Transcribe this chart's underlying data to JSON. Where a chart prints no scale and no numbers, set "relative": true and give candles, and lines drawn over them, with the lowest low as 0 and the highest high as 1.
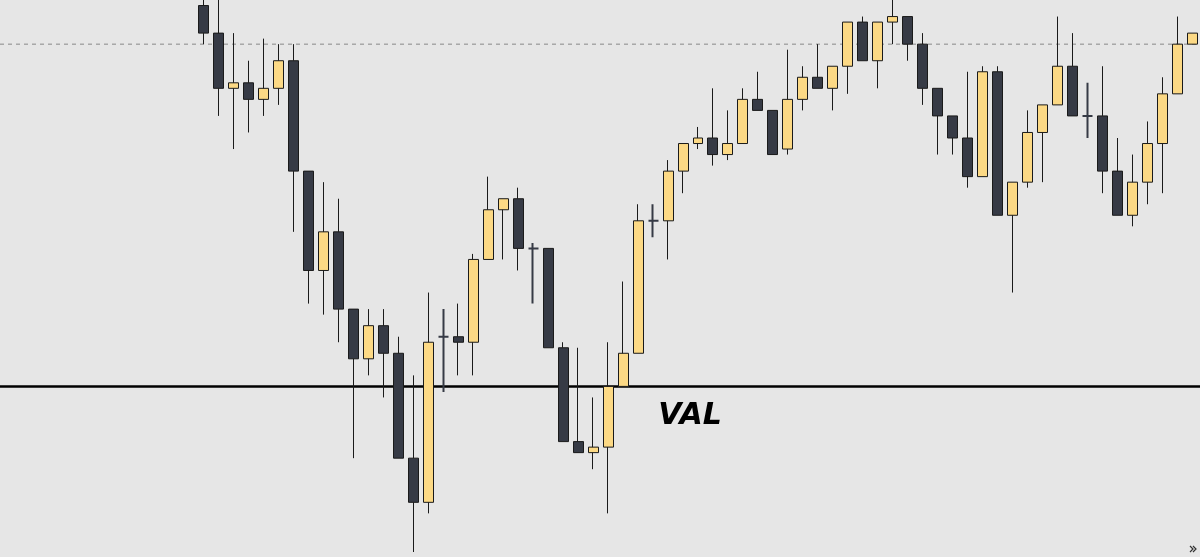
{
  "chart_data": {
    "type": "candlestick",
    "relative": true,
    "categories": [
      null,
      null,
      null,
      null,
      null,
      null,
      null,
      null,
      null,
      null,
      null,
      null,
      null,
      null,
      null,
      null,
      null,
      null,
      null,
      null,
      null,
      null,
      null,
      null,
      null,
      null,
      null,
      null,
      null,
      null,
      null,
      null,
      null,
      null,
      null,
      null,
      null,
      null,
      null,
      null,
      null,
      null,
      null,
      null,
      null,
      null,
      null,
      null,
      null,
      null,
      null,
      null,
      null,
      null,
      null,
      null,
      null,
      null,
      null,
      null,
      null,
      null,
      null,
      null,
      null,
      null,
      null
    ],
    "ohlc": [
      [
        0.99,
        1.0,
        0.92,
        0.94
      ],
      [
        0.94,
        1.0,
        0.79,
        0.84
      ],
      [
        0.84,
        0.94,
        0.73,
        0.85
      ],
      [
        0.85,
        0.89,
        0.76,
        0.82
      ],
      [
        0.82,
        0.93,
        0.79,
        0.84
      ],
      [
        0.84,
        0.92,
        0.81,
        0.89
      ],
      [
        0.89,
        0.92,
        0.58,
        0.69
      ],
      [
        0.69,
        0.69,
        0.45,
        0.51
      ],
      [
        0.51,
        0.67,
        0.43,
        0.58
      ],
      [
        0.58,
        0.64,
        0.38,
        0.44
      ],
      [
        0.44,
        0.44,
        0.17,
        0.35
      ],
      [
        0.35,
        0.44,
        0.32,
        0.41
      ],
      [
        0.41,
        0.44,
        0.28,
        0.36
      ],
      [
        0.36,
        0.39,
        0.17,
        0.17
      ],
      [
        0.17,
        0.32,
        0.0,
        0.09
      ],
      [
        0.09,
        0.47,
        0.07,
        0.38
      ],
      [
        0.39,
        0.44,
        0.29,
        0.39
      ],
      [
        0.39,
        0.45,
        0.32,
        0.38
      ],
      [
        0.38,
        0.54,
        0.32,
        0.53
      ],
      [
        0.53,
        0.68,
        0.53,
        0.62
      ],
      [
        0.62,
        0.64,
        0.53,
        0.64
      ],
      [
        0.64,
        0.66,
        0.51,
        0.55
      ],
      [
        0.55,
        0.56,
        0.45,
        0.55
      ],
      [
        0.55,
        0.55,
        0.37,
        0.37
      ],
      [
        0.37,
        0.38,
        0.2,
        0.2
      ],
      [
        0.2,
        0.37,
        0.18,
        0.18
      ],
      [
        0.18,
        0.28,
        0.15,
        0.19
      ],
      [
        0.19,
        0.38,
        0.07,
        0.3
      ],
      [
        0.3,
        0.49,
        0.3,
        0.36
      ],
      [
        0.36,
        0.63,
        0.36,
        0.6
      ],
      [
        0.6,
        0.63,
        0.57,
        0.6
      ],
      [
        0.6,
        0.71,
        0.53,
        0.69
      ],
      [
        0.69,
        0.74,
        0.65,
        0.74
      ],
      [
        0.74,
        0.77,
        0.73,
        0.75
      ],
      [
        0.75,
        0.84,
        0.7,
        0.72
      ],
      [
        0.72,
        0.8,
        0.71,
        0.74
      ],
      [
        0.74,
        0.84,
        0.74,
        0.82
      ],
      [
        0.82,
        0.87,
        0.8,
        0.8
      ],
      [
        0.8,
        0.8,
        0.72,
        0.72
      ],
      [
        0.73,
        0.91,
        0.72,
        0.82
      ],
      [
        0.82,
        0.88,
        0.8,
        0.86
      ],
      [
        0.86,
        0.92,
        0.84,
        0.84
      ],
      [
        0.84,
        0.88,
        0.8,
        0.88
      ],
      [
        0.88,
        0.96,
        0.83,
        0.96
      ],
      [
        0.96,
        0.97,
        0.89,
        0.89
      ],
      [
        0.89,
        0.96,
        0.84,
        0.96
      ],
      [
        0.96,
        1.0,
        0.92,
        0.97
      ],
      [
        0.97,
        0.97,
        0.89,
        0.92
      ],
      [
        0.92,
        0.94,
        0.81,
        0.84
      ],
      [
        0.84,
        0.84,
        0.72,
        0.79
      ],
      [
        0.79,
        0.79,
        0.72,
        0.75
      ],
      [
        0.75,
        0.87,
        0.66,
        0.68
      ],
      [
        0.68,
        0.88,
        0.68,
        0.87
      ],
      [
        0.87,
        0.88,
        0.61,
        0.61
      ],
      [
        0.61,
        0.67,
        0.47,
        0.67
      ],
      [
        0.67,
        0.8,
        0.66,
        0.76
      ],
      [
        0.76,
        0.81,
        0.67,
        0.81
      ],
      [
        0.81,
        0.97,
        0.81,
        0.88
      ],
      [
        0.88,
        0.94,
        0.79,
        0.79
      ],
      [
        0.79,
        0.85,
        0.75,
        0.79
      ],
      [
        0.79,
        0.88,
        0.65,
        0.69
      ],
      [
        0.69,
        0.75,
        0.61,
        0.61
      ],
      [
        0.61,
        0.72,
        0.59,
        0.67
      ],
      [
        0.67,
        0.78,
        0.63,
        0.74
      ],
      [
        0.74,
        0.86,
        0.65,
        0.83
      ],
      [
        0.83,
        0.97,
        0.83,
        0.92
      ],
      [
        0.92,
        0.94,
        0.92,
        0.94
      ]
    ],
    "colors": [
      "#363a45",
      "#363a45",
      "#fcd985",
      "#363a45",
      "#fcd985",
      "#fcd985",
      "#363a45",
      "#363a45",
      "#fcd985",
      "#363a45",
      "#363a45",
      "#fcd985",
      "#363a45",
      "#363a45",
      "#363a45",
      "#fcd985",
      "#363a45",
      "#363a45",
      "#fcd985",
      "#fcd985",
      "#fcd985",
      "#363a45",
      "#363a45",
      "#363a45",
      "#363a45",
      "#363a45",
      "#fcd985",
      "#fcd985",
      "#fcd985",
      "#fcd985",
      "#363a45",
      "#fcd985",
      "#fcd985",
      "#fcd985",
      "#363a45",
      "#fcd985",
      "#fcd985",
      "#363a45",
      "#363a45",
      "#fcd985",
      "#fcd985",
      "#363a45",
      "#fcd985",
      "#fcd985",
      "#363a45",
      "#fcd985",
      "#fcd985",
      "#363a45",
      "#363a45",
      "#363a45",
      "#363a45",
      "#363a45",
      "#fcd985",
      "#363a45",
      "#fcd985",
      "#fcd985",
      "#fcd985",
      "#fcd985",
      "#363a45",
      "#363a45",
      "#363a45",
      "#363a45",
      "#fcd985",
      "#fcd985",
      "#fcd985",
      "#fcd985",
      "#fcd985"
    ],
    "ref_lines": [
      {
        "axis": "y",
        "value": 0.3,
        "label": "VAL",
        "color": "#000000",
        "line_style": "solid"
      },
      {
        "axis": "y",
        "value": 0.92,
        "color": "#888888",
        "line_style": "dashed"
      }
    ],
    "grid": false,
    "tick_labels": false
  }
}
